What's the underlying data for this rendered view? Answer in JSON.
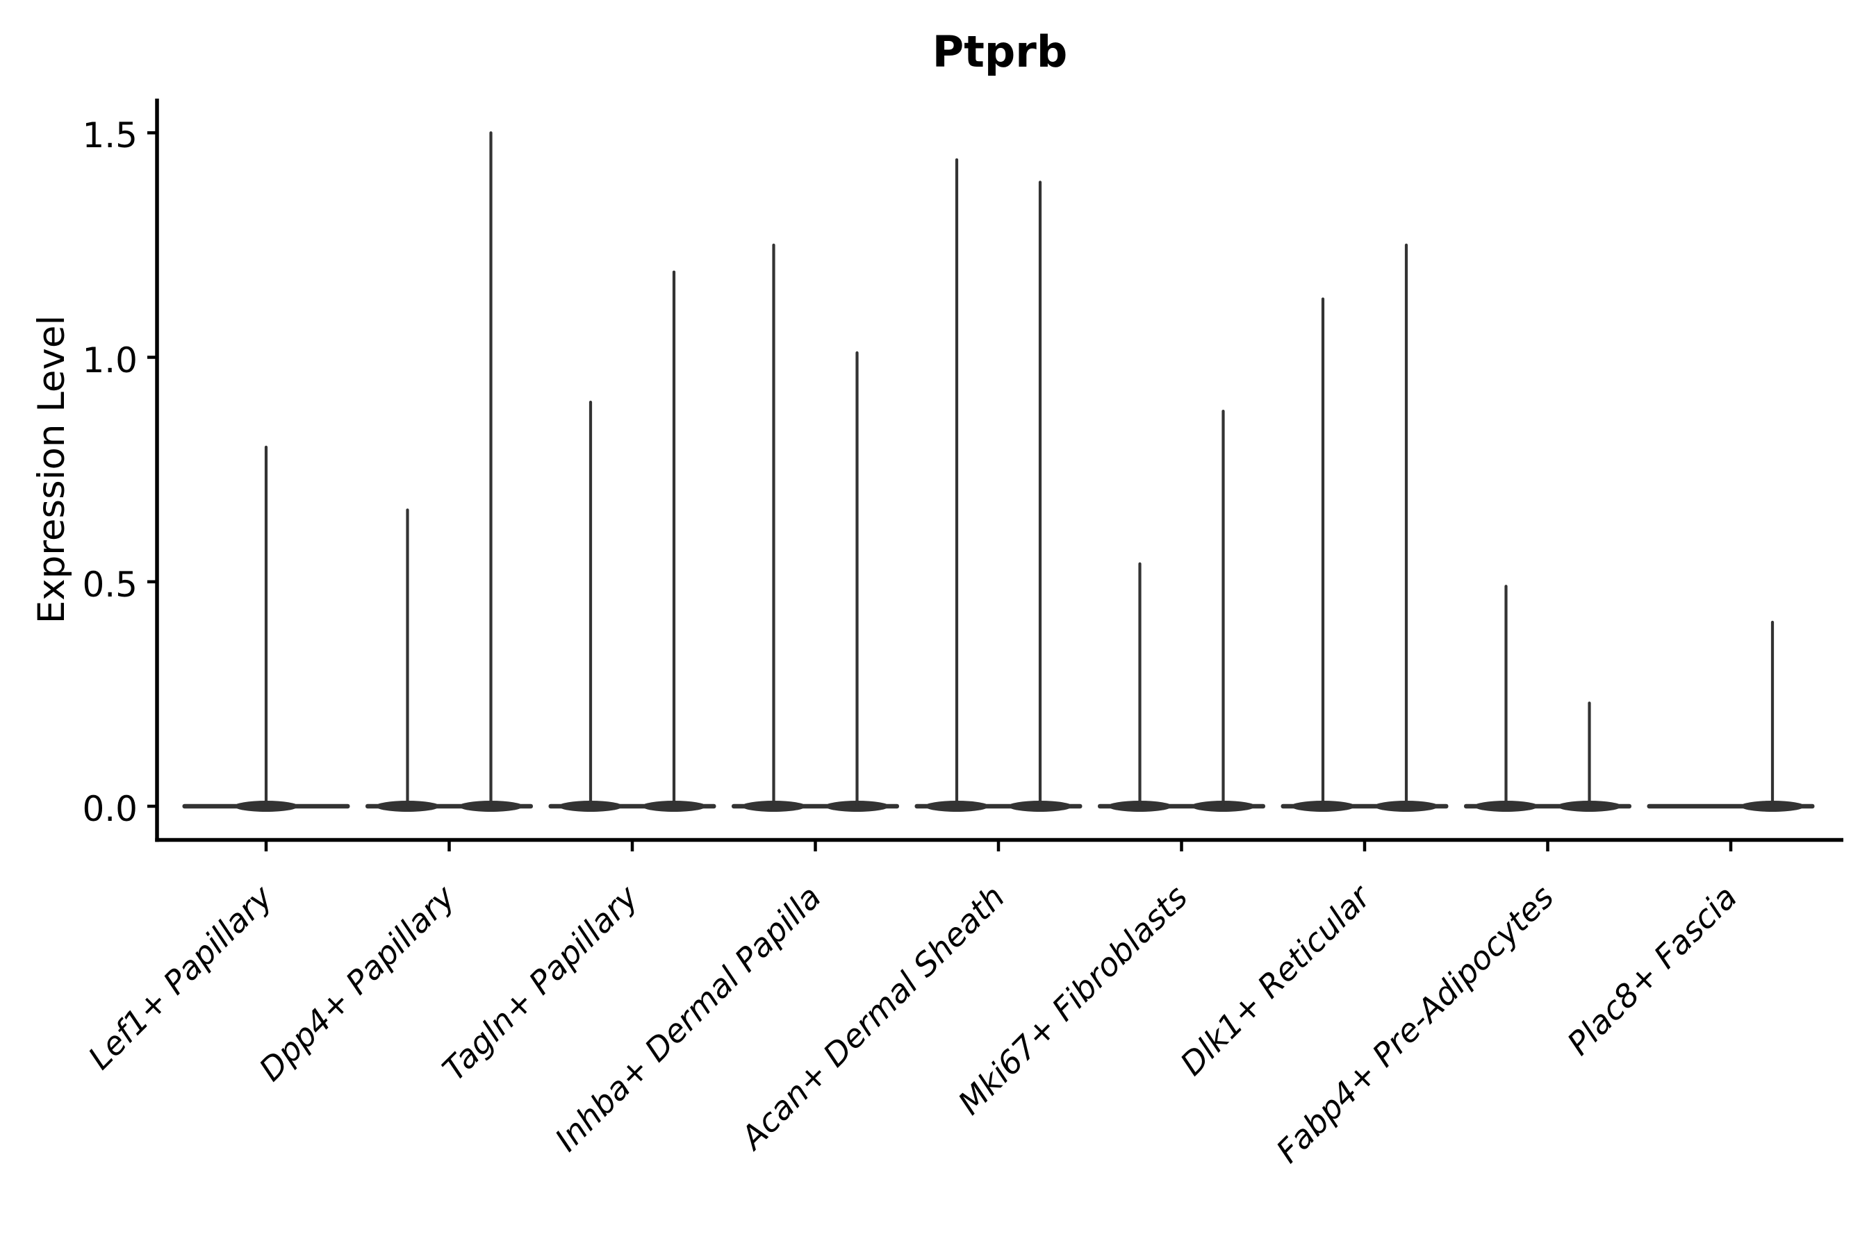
{
  "figure": {
    "background": "#ffffff"
  },
  "chart_data": {
    "type": "violin",
    "title": "Ptprb",
    "ylabel": "Expression Level",
    "xlabel": "",
    "ylim": [
      -0.08,
      1.59
    ],
    "ytick_values": [
      0,
      0.5,
      1.0,
      1.5
    ],
    "ytick_labels": [
      "0.0",
      "0.5",
      "1.0",
      "1.5"
    ],
    "grid": false,
    "legend": null,
    "categories": [
      "Lef1+ Papillary",
      "Dpp4+ Papillary",
      "Tagln+ Papillary",
      "Inhba+ Dermal Papilla",
      "Acan+ Dermal Sheath",
      "Mki67+ Fibroblasts",
      "Dlk1+ Reticular",
      "Fabp4+ Pre-Adipocytes",
      "Plac8+ Fascia"
    ],
    "violins": [
      {
        "category": "Lef1+ Papillary",
        "baseline_value": 0,
        "spikes": [
          {
            "dodge": "center",
            "max": 0.8
          }
        ]
      },
      {
        "category": "Dpp4+ Papillary",
        "baseline_value": 0,
        "spikes": [
          {
            "dodge": "left",
            "max": 0.66
          },
          {
            "dodge": "right",
            "max": 1.5
          }
        ]
      },
      {
        "category": "Tagln+ Papillary",
        "baseline_value": 0,
        "spikes": [
          {
            "dodge": "left",
            "max": 0.9
          },
          {
            "dodge": "right",
            "max": 1.19
          }
        ]
      },
      {
        "category": "Inhba+ Dermal Papilla",
        "baseline_value": 0,
        "spikes": [
          {
            "dodge": "left",
            "max": 1.25
          },
          {
            "dodge": "right",
            "max": 1.01
          }
        ]
      },
      {
        "category": "Acan+ Dermal Sheath",
        "baseline_value": 0,
        "spikes": [
          {
            "dodge": "left",
            "max": 1.44
          },
          {
            "dodge": "right",
            "max": 1.39
          }
        ]
      },
      {
        "category": "Mki67+ Fibroblasts",
        "baseline_value": 0,
        "spikes": [
          {
            "dodge": "left",
            "max": 0.54
          },
          {
            "dodge": "right",
            "max": 0.88
          }
        ]
      },
      {
        "category": "Dlk1+ Reticular",
        "baseline_value": 0,
        "spikes": [
          {
            "dodge": "left",
            "max": 1.13
          },
          {
            "dodge": "right",
            "max": 1.25
          }
        ]
      },
      {
        "category": "Fabp4+ Pre-Adipocytes",
        "baseline_value": 0,
        "spikes": [
          {
            "dodge": "left",
            "max": 0.49
          },
          {
            "dodge": "right",
            "max": 0.23
          }
        ]
      },
      {
        "category": "Plac8+ Fascia",
        "baseline_value": 0,
        "spikes": [
          {
            "dodge": "right",
            "max": 0.41
          }
        ]
      }
    ],
    "colors": {
      "violin": "#333333",
      "axis": "#000000",
      "text": "#000000",
      "background": "#ffffff"
    }
  }
}
